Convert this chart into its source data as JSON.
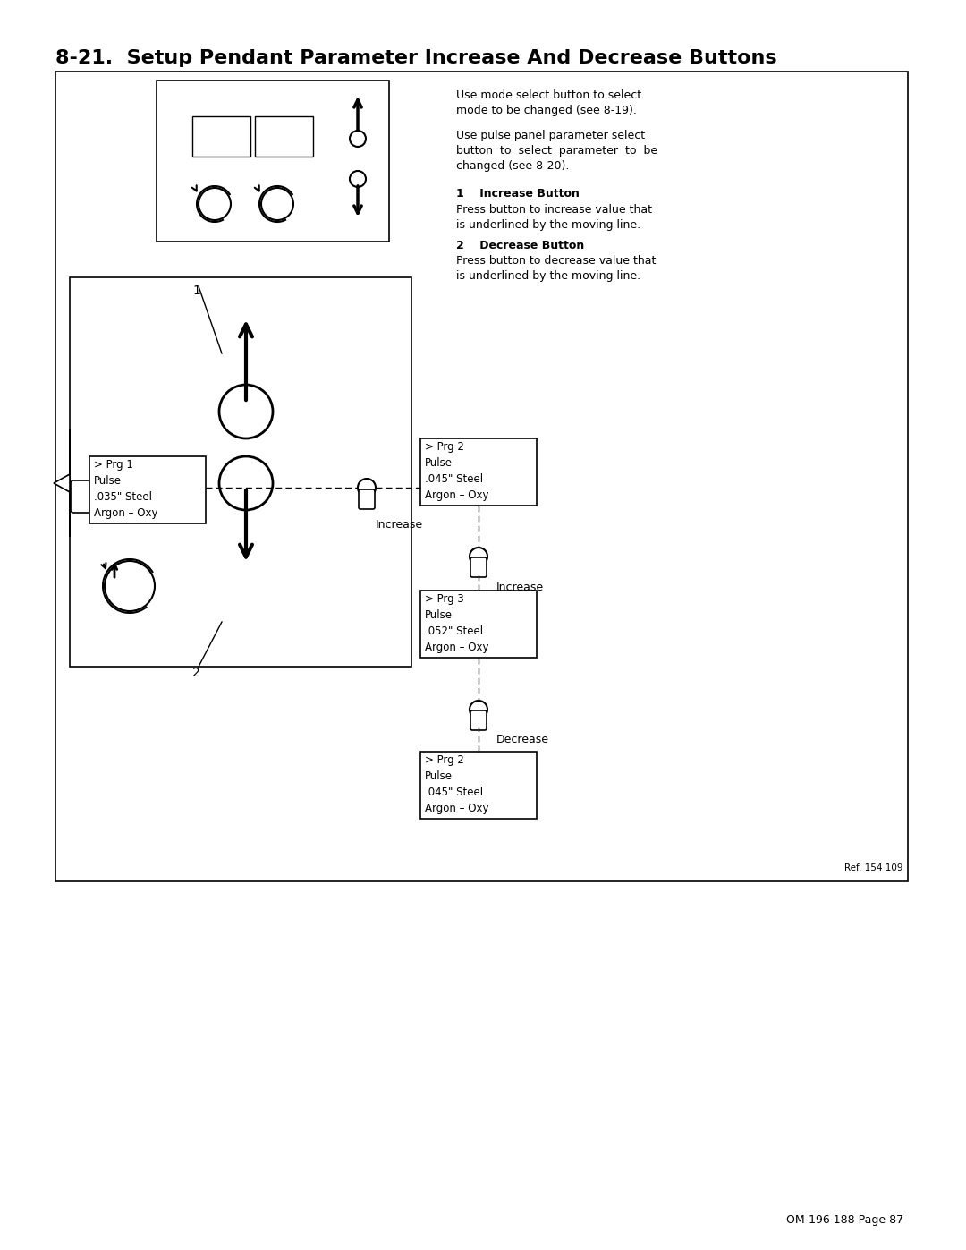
{
  "title": "8-21.  Setup Pendant Parameter Increase And Decrease Buttons",
  "page_ref": "OM-196 188 Page 87",
  "ref_num": "Ref. 154 109",
  "right_text_lines": [
    "Use mode select button to select\nmode to be changed (see 8-19).",
    "Use pulse panel parameter select\nbutton to select parameter to be\nchanged (see 8-20).",
    "1    Increase Button",
    "Press button to increase value that\nis underlined by the moving line.",
    "2    Decrease Button",
    "Press button to decrease value that\nis underlined by the moving line."
  ],
  "box1_label": "> Prg 1\nPulse\n.035\" Steel\nArgon – Oxy",
  "box2_label": "> Prg 2\nPulse\n.045\" Steel\nArgon – Oxy",
  "box3_label": "> Prg 3\nPulse\n.052\" Steel\nArgon – Oxy",
  "box4_label": "> Prg 2\nPulse\n.045\" Steel\nArgon – Oxy",
  "increase_label": "Increase",
  "decrease_label": "Decrease",
  "label1": "1",
  "label2": "2"
}
